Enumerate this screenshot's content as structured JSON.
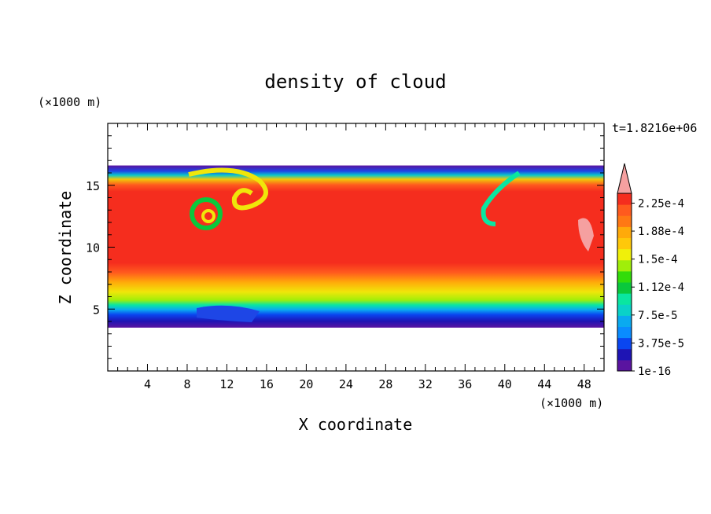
{
  "chart_data": {
    "type": "heatmap",
    "title": "density of cloud",
    "time_label": "t=1.8216e+06",
    "xlabel": "X coordinate",
    "ylabel": "Z coordinate",
    "x_unit": "(×1000 m)",
    "y_unit": "(×1000 m)",
    "xlim": [
      0,
      50
    ],
    "ylim": [
      0,
      20
    ],
    "x_ticks": [
      4,
      8,
      12,
      16,
      20,
      24,
      28,
      32,
      36,
      40,
      44,
      48
    ],
    "y_ticks": [
      5,
      10,
      15
    ],
    "grid": false,
    "colorbar": {
      "levels": [
        "1e-16",
        "3.75e-5",
        "7.5e-5",
        "1.12e-4",
        "1.5e-4",
        "1.88e-4",
        "2.25e-4"
      ],
      "colors": [
        "#5a14a0",
        "#1e14b4",
        "#0a46f0",
        "#0a8cff",
        "#0aaaf0",
        "#0ad2c8",
        "#0ae6a0",
        "#0ac83c",
        "#32dc0a",
        "#a0ee0a",
        "#f0f00a",
        "#ffc80a",
        "#ffaa0a",
        "#ff7814",
        "#ff5a1e",
        "#f52d1e",
        "#f5a0a0"
      ],
      "extend": "max"
    },
    "cloud_region": {
      "x_range": [
        0,
        50
      ],
      "z_bottom": 3.5,
      "z_top": 16.6
    }
  }
}
